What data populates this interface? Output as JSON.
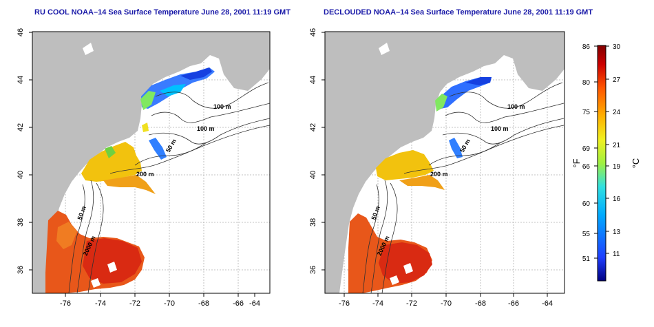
{
  "panels": [
    {
      "title": "RU COOL NOAA–14 Sea Surface Temperature June 28, 2001 11:19 GMT",
      "lon_ticks": [
        "-76",
        "-74",
        "-72",
        "-70",
        "-68",
        "-66",
        "-64"
      ],
      "lat_ticks": [
        "46",
        "44",
        "42",
        "40",
        "38",
        "36"
      ],
      "contour_labels": [
        "100 m",
        "100 m",
        "50 m",
        "200 m",
        "50 m",
        "2000 m"
      ]
    },
    {
      "title": "DECLOUDED NOAA–14 Sea Surface Temperature June 28, 2001 11:19 GMT",
      "lon_ticks": [
        "-76",
        "-74",
        "-72",
        "-70",
        "-68",
        "-66",
        "-64"
      ],
      "lat_ticks": [
        "46",
        "44",
        "42",
        "40",
        "38",
        "36"
      ],
      "contour_labels": [
        "100 m",
        "100 m",
        "50 m",
        "200 m",
        "50 m",
        "2000 m"
      ]
    }
  ],
  "colorbar": {
    "f_ticks": [
      "86",
      "80",
      "75",
      "69",
      "66",
      "60",
      "55",
      "51"
    ],
    "c_ticks": [
      "30",
      "27",
      "24",
      "21",
      "19",
      "16",
      "13",
      "11"
    ],
    "f_label": "°F",
    "c_label": "°C",
    "colors": [
      "#000080",
      "#1f3fff",
      "#00aaff",
      "#30e0e0",
      "#a0f040",
      "#f0f020",
      "#ffb000",
      "#ff5500",
      "#cc0000",
      "#800000"
    ]
  },
  "colors": {
    "land": "#bebebe",
    "title": "#1a1aa8",
    "grid": "#b0b0b0"
  }
}
